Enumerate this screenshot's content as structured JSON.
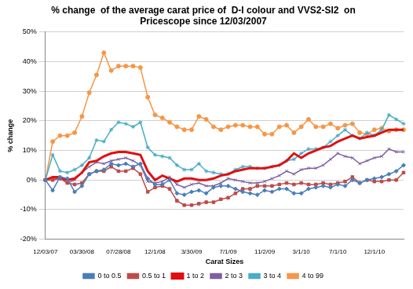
{
  "chart_data": {
    "type": "line",
    "title": [
      "% change  of the average carat price of  D-I colour and VVS2-SI2  on",
      "Pricescope since 12/03/2007"
    ],
    "x_label": "Carat Sizes",
    "y_label": "% change",
    "categories": [
      "12/03/07",
      null,
      null,
      null,
      null,
      "03/30/08",
      null,
      null,
      null,
      null,
      "07/28/08",
      null,
      null,
      null,
      null,
      "12/1/08",
      null,
      null,
      null,
      null,
      "3/30/09",
      null,
      null,
      null,
      null,
      "7/1/09",
      null,
      null,
      null,
      null,
      "11/2/09",
      null,
      null,
      null,
      null,
      "3/1/10",
      null,
      null,
      null,
      null,
      "7/1/10",
      null,
      null,
      null,
      null,
      "12/1/10",
      null,
      null,
      null,
      null
    ],
    "ylim": [
      -20,
      50
    ],
    "yticks": [
      {
        "value": -20,
        "label": "-20%"
      },
      {
        "value": -10,
        "label": "-10%"
      },
      {
        "value": 0,
        "label": "0%"
      },
      {
        "value": 10,
        "label": "10%"
      },
      {
        "value": 20,
        "label": "20%"
      },
      {
        "value": 30,
        "label": "30%"
      },
      {
        "value": 40,
        "label": "40%"
      },
      {
        "value": 50,
        "label": "50%"
      }
    ],
    "grid": true,
    "legend": "bottom",
    "series": [
      {
        "name": "0 to 0.5",
        "color": "#4a7ebb",
        "marker": "diamond",
        "line_style": "solid",
        "values": [
          0,
          -3.5,
          1,
          0.5,
          -4,
          -2,
          2,
          3,
          3.5,
          5.5,
          5,
          5.5,
          4.5,
          5.5,
          0.5,
          -1.5,
          -1.5,
          0,
          -4.5,
          -5,
          -4,
          -3.5,
          -4.5,
          -2.5,
          -2,
          -2,
          -3,
          -4,
          -4.5,
          -5,
          -3.5,
          -4,
          -3,
          -3,
          -4.5,
          -4.5,
          -3,
          -2.5,
          -2,
          -2.5,
          -1.5,
          -2,
          0,
          -1,
          0,
          0.5,
          1,
          2,
          3,
          5
        ]
      },
      {
        "name": "0.5 to 1",
        "color": "#be4b48",
        "marker": "square",
        "line_style": "solid",
        "values": [
          0,
          0,
          0.5,
          -1,
          -1.5,
          -1,
          2,
          3,
          3,
          4.5,
          3,
          3,
          4,
          2,
          -4,
          -2.5,
          -2,
          -3,
          -7,
          -8.5,
          -8.5,
          -8,
          -7.5,
          -7.5,
          -6.5,
          -6,
          -4.5,
          -3,
          -3,
          -2,
          -2,
          -2,
          -1.5,
          -1,
          -1.5,
          -1,
          -1.5,
          -1.5,
          -1,
          -1.5,
          -1,
          -0.5,
          1,
          -1,
          0,
          -0.5,
          -0.5,
          0,
          0,
          2.5
        ]
      },
      {
        "name": "1 to 2",
        "color": "#e01010",
        "marker": "none",
        "line_style": "solid",
        "values": [
          0,
          1,
          1,
          0,
          0.5,
          2.5,
          6,
          6.5,
          8,
          9,
          9.5,
          9.5,
          9,
          8.5,
          3,
          0,
          1.5,
          0.5,
          -0.5,
          0.5,
          0.5,
          0,
          0,
          0.5,
          1.5,
          2,
          3,
          3.5,
          4,
          4,
          4,
          4.5,
          5,
          6.5,
          9,
          7.5,
          9,
          10,
          11,
          11.5,
          13,
          14,
          15,
          14,
          14.5,
          15,
          16,
          17,
          17,
          17
        ]
      },
      {
        "name": "2 to 3",
        "color": "#7d60a0",
        "marker": "x",
        "line_style": "solid",
        "values": [
          0,
          0,
          1,
          -1,
          0,
          2.5,
          4.5,
          6,
          5.5,
          6.5,
          7,
          7.5,
          6.5,
          5,
          -0.5,
          -1,
          -0.5,
          1,
          -1.5,
          -2.5,
          -1.5,
          -1,
          -2,
          -2,
          -1,
          0.5,
          0,
          -0.5,
          -1,
          -1,
          -0.5,
          0.5,
          1.5,
          3,
          2,
          3.5,
          4,
          4,
          5,
          7,
          9,
          8,
          7.5,
          5.5,
          6.5,
          7.5,
          8,
          10.5,
          9.5,
          9.5
        ]
      },
      {
        "name": "3 to 4",
        "color": "#4bacc6",
        "marker": "star",
        "line_style": "solid",
        "values": [
          0,
          8.5,
          3,
          2.5,
          3.5,
          5,
          7.5,
          13.5,
          13,
          17,
          19.5,
          19,
          18,
          19.5,
          11,
          8.5,
          8,
          7.5,
          5,
          3.5,
          3.5,
          5.5,
          3,
          2.5,
          2,
          2,
          3.5,
          4.5,
          4.5,
          4,
          4,
          4.5,
          5,
          6.5,
          7,
          9,
          10.5,
          10.5,
          11,
          13,
          15,
          17,
          15,
          14,
          16,
          15,
          17,
          22,
          20.5,
          19
        ]
      },
      {
        "name": "4 to 99",
        "color": "#f79646",
        "marker": "circle",
        "line_style": "solid",
        "values": [
          0,
          13,
          15,
          15,
          16,
          21.5,
          29.5,
          35.5,
          43,
          37,
          38.5,
          38.5,
          38.5,
          38,
          28,
          22,
          21,
          19.5,
          18,
          17,
          17,
          21.5,
          20.5,
          18,
          17,
          18,
          18.5,
          18.5,
          18,
          18,
          15.5,
          15.5,
          18,
          18.5,
          16,
          18,
          20.5,
          18,
          18,
          19,
          17.5,
          18.5,
          19,
          16,
          15.5,
          17,
          17.5,
          16.5,
          17,
          17
        ]
      }
    ]
  }
}
